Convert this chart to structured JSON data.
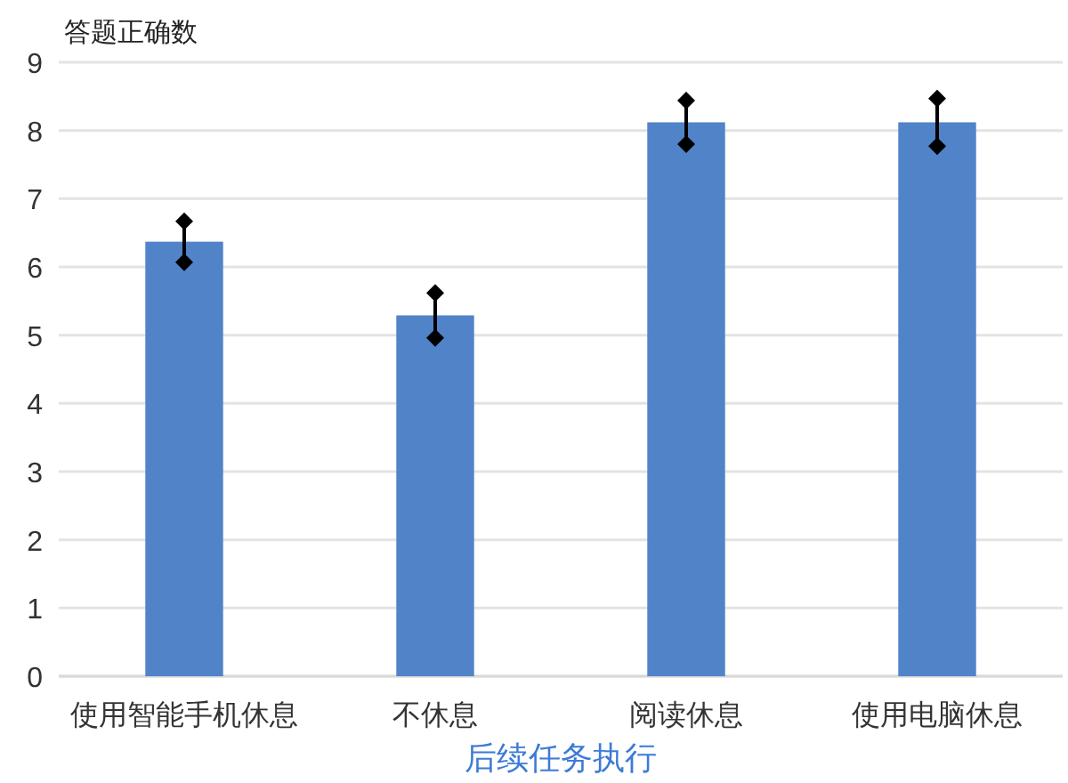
{
  "chart_data": {
    "type": "bar",
    "ylabel": "答题正确数",
    "xlabel": "后续任务执行",
    "categories": [
      "使用智能手机休息",
      "不休息",
      "阅读休息",
      "使用电脑休息"
    ],
    "values": [
      6.37,
      5.29,
      8.12,
      8.12
    ],
    "errors": [
      0.3,
      0.33,
      0.32,
      0.35
    ],
    "color": "#5183c9",
    "ylim": [
      0,
      9
    ],
    "yticks": [
      0,
      1,
      2,
      3,
      4,
      5,
      6,
      7,
      8,
      9
    ],
    "grid": "y",
    "marker": "diamond"
  }
}
